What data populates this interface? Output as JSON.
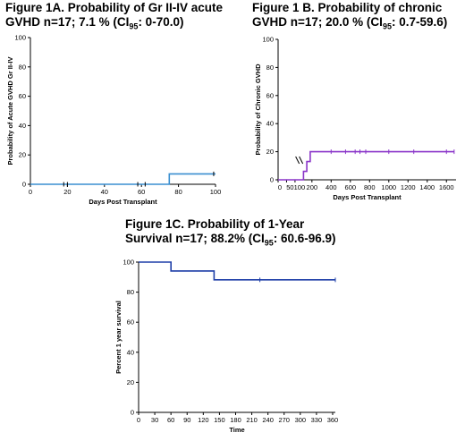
{
  "figures": {
    "a": {
      "title_line1": "Figure 1A.  Probability of Gr II-IV acute",
      "title_line2_pre": "GVHD n=17; 7.1 % (CI",
      "title_line2_sub": "95",
      "title_line2_post": ": 0-70.0)"
    },
    "b": {
      "title_line1": "Figure 1 B.   Probability of chronic",
      "title_line2_pre": "GVHD n=17;  20.0 % (CI",
      "title_line2_sub": "95",
      "title_line2_post": ": 0.7-59.6)"
    },
    "c": {
      "title_line1": "Figure 1C.  Probability of 1-Year",
      "title_line2_pre": "Survival n=17; 88.2% (CI",
      "title_line2_sub": "95",
      "title_line2_post": ": 60.6-96.9)"
    }
  },
  "chart_data": [
    {
      "id": "fig1a",
      "type": "line",
      "step": true,
      "xlabel": "Days Post Transplant",
      "ylabel": "Probability of Acute GVHD Gr II-IV",
      "xlim": [
        0,
        100
      ],
      "ylim": [
        0,
        100
      ],
      "xticks": [
        0,
        20,
        40,
        60,
        80,
        100
      ],
      "yticks": [
        0,
        20,
        40,
        60,
        80,
        100
      ],
      "color": "#3a8fd0",
      "series": [
        {
          "points": [
            [
              0,
              0
            ],
            [
              75,
              0
            ],
            [
              75,
              7.1
            ],
            [
              100,
              7.1
            ]
          ],
          "censored": [
            [
              18,
              0
            ],
            [
              20,
              0
            ],
            [
              58,
              0
            ],
            [
              62,
              0
            ],
            [
              99,
              7.1
            ]
          ]
        }
      ]
    },
    {
      "id": "fig1b",
      "type": "line",
      "step": true,
      "axis_break": true,
      "xlabel": "Days Post Transplant",
      "ylabel": "Probability of Chronic GVHD",
      "xlim": [
        0,
        1700
      ],
      "ylim": [
        0,
        100
      ],
      "xticks": [
        0,
        50,
        100,
        200,
        400,
        600,
        800,
        1000,
        1200,
        1400,
        1600
      ],
      "xtick_labels": [
        "0",
        "50",
        "100",
        "200",
        "400",
        "600",
        "800",
        "1000",
        "1200",
        "1400",
        "1600"
      ],
      "yticks": [
        0,
        20,
        40,
        60,
        80,
        100
      ],
      "color": "#8a35c9",
      "series": [
        {
          "points": [
            [
              0,
              0
            ],
            [
              150,
              0
            ],
            [
              150,
              6
            ],
            [
              170,
              6
            ],
            [
              170,
              13
            ],
            [
              190,
              13
            ],
            [
              190,
              20
            ],
            [
              1680,
              20
            ]
          ],
          "censored": [
            [
              400,
              20
            ],
            [
              550,
              20
            ],
            [
              650,
              20
            ],
            [
              700,
              20
            ],
            [
              760,
              20
            ],
            [
              1000,
              20
            ],
            [
              1260,
              20
            ],
            [
              1600,
              20
            ],
            [
              1680,
              20
            ]
          ]
        }
      ]
    },
    {
      "id": "fig1c",
      "type": "line",
      "step": true,
      "xlabel": "Time",
      "ylabel": "Percent 1 year survival",
      "xlim": [
        0,
        365
      ],
      "ylim": [
        0,
        100
      ],
      "xticks": [
        0,
        30,
        60,
        90,
        120,
        150,
        180,
        210,
        240,
        270,
        300,
        330,
        360
      ],
      "yticks": [
        0,
        20,
        40,
        60,
        80,
        100
      ],
      "color": "#1f3fa8",
      "series": [
        {
          "points": [
            [
              0,
              100
            ],
            [
              60,
              100
            ],
            [
              60,
              94.1
            ],
            [
              140,
              94.1
            ],
            [
              140,
              88.2
            ],
            [
              365,
              88.2
            ]
          ],
          "censored": [
            [
              225,
              88.2
            ],
            [
              365,
              88.2
            ]
          ]
        }
      ]
    }
  ]
}
